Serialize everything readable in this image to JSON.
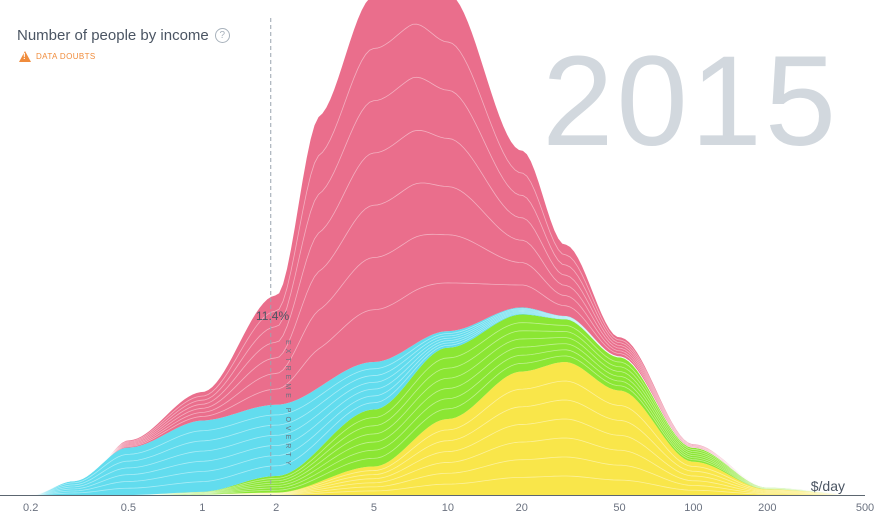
{
  "header": {
    "title": "Number of people by income",
    "help_symbol": "?",
    "data_doubts_label": "DATA DOUBTS"
  },
  "year": "2015",
  "threshold": {
    "percent_label": "11.4%",
    "vertical_label": "EXTREME POVERTY",
    "x_value": 1.9
  },
  "colors": {
    "asia": "#ea6e8c",
    "africa": "#62dcee",
    "americas": "#8be633",
    "europe": "#f9e64a",
    "threshold_line": "#9aa4ae",
    "axis": "#5c6670"
  },
  "chart_data": {
    "type": "area",
    "title": "Number of people by income",
    "xlabel": "$/day",
    "ylabel": "",
    "x_scale": "log",
    "xlim": [
      0.15,
      500
    ],
    "x_ticks": [
      "0.2",
      "0.5",
      "1",
      "2",
      "5",
      "10",
      "20",
      "50",
      "100",
      "200",
      "500"
    ],
    "x_tick_values": [
      0.2,
      0.5,
      1,
      2,
      5,
      10,
      20,
      50,
      100,
      200,
      500
    ],
    "ylim": [
      0,
      100
    ],
    "stacking": "stacked",
    "grid": false,
    "series": [
      {
        "color": "yellow",
        "points": [
          [
            0.8,
            0
          ],
          [
            2,
            0.5
          ],
          [
            5,
            6
          ],
          [
            10,
            16
          ],
          [
            20,
            26
          ],
          [
            30,
            28
          ],
          [
            50,
            22
          ],
          [
            100,
            7
          ],
          [
            200,
            1.2
          ],
          [
            500,
            0
          ]
        ]
      },
      {
        "color": "green",
        "points": [
          [
            0.5,
            0
          ],
          [
            1,
            0.6
          ],
          [
            2,
            3.5
          ],
          [
            5,
            12
          ],
          [
            10,
            15
          ],
          [
            20,
            12
          ],
          [
            30,
            9
          ],
          [
            50,
            7
          ],
          [
            100,
            3
          ],
          [
            200,
            0.5
          ],
          [
            500,
            0
          ]
        ]
      },
      {
        "color": "cyan",
        "points": [
          [
            0.2,
            0
          ],
          [
            0.3,
            3
          ],
          [
            0.5,
            10
          ],
          [
            1,
            15
          ],
          [
            2,
            15
          ],
          [
            5,
            10
          ],
          [
            10,
            3.5
          ],
          [
            20,
            1.5
          ],
          [
            30,
            0.7
          ],
          [
            50,
            0.2
          ],
          [
            100,
            0
          ]
        ]
      },
      {
        "color": "pink",
        "points": [
          [
            0.4,
            0
          ],
          [
            0.5,
            1.5
          ],
          [
            1,
            6
          ],
          [
            2,
            23
          ],
          [
            3,
            57
          ],
          [
            5,
            77
          ],
          [
            7,
            79
          ],
          [
            10,
            71
          ],
          [
            20,
            33
          ],
          [
            30,
            15
          ],
          [
            50,
            4
          ],
          [
            100,
            0.7
          ],
          [
            200,
            0
          ]
        ]
      }
    ]
  }
}
